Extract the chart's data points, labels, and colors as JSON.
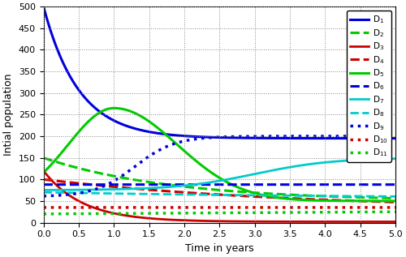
{
  "xlabel": "Time in years",
  "ylabel": "Intial population",
  "xlim": [
    0,
    5
  ],
  "ylim": [
    0,
    500
  ],
  "xticks": [
    0,
    0.5,
    1,
    1.5,
    2,
    2.5,
    3,
    3.5,
    4,
    4.5,
    5
  ],
  "yticks": [
    0,
    50,
    100,
    150,
    200,
    250,
    300,
    350,
    400,
    450,
    500
  ],
  "figsize": [
    5.0,
    3.17
  ],
  "dpi": 100,
  "legend_labels": [
    "D$_1$",
    "D$_2$",
    "D$_3$",
    "D$_4$",
    "D$_5$",
    "D$_6$",
    "D$_7$",
    "D$_8$",
    "D$_9$",
    "D$_{10}$",
    "D$_{11}$"
  ],
  "legend_colors": [
    "#0000dd",
    "#00cc00",
    "#cc0000",
    "#cc0000",
    "#00cc00",
    "#0000dd",
    "#00cccc",
    "#00cccc",
    "#0000dd",
    "#cc0000",
    "#00cc00"
  ],
  "legend_linestyles": [
    "-",
    "--",
    "-",
    "--",
    "-",
    "--",
    "-",
    "--",
    ":",
    ":",
    ":"
  ],
  "legend_linewidths": [
    2.2,
    2.2,
    2.0,
    2.2,
    2.2,
    2.2,
    2.0,
    2.0,
    2.5,
    2.5,
    2.5
  ]
}
